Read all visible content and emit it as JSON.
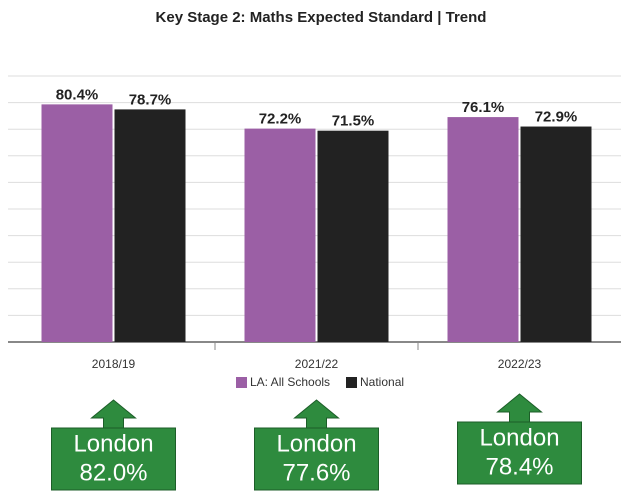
{
  "chart_data": {
    "type": "bar",
    "title": "Key Stage 2: Maths Expected Standard | Trend",
    "categories": [
      "2018/19",
      "2021/22",
      "2022/23"
    ],
    "series": [
      {
        "name": "LA: All Schools",
        "color": "#9b5fa5",
        "values": [
          80.4,
          72.2,
          76.1
        ],
        "value_labels": [
          "80.4%",
          "72.2%",
          "76.1%"
        ]
      },
      {
        "name": "National",
        "color": "#222222",
        "values": [
          78.7,
          71.5,
          72.9
        ],
        "value_labels": [
          "78.7%",
          "71.5%",
          "72.9%"
        ]
      }
    ],
    "ylim": [
      0,
      90
    ],
    "yticks": [
      0,
      9,
      18,
      27,
      36,
      45,
      54,
      63,
      72,
      81,
      90
    ],
    "grid": true,
    "legend": "bottom",
    "annotations": [
      [
        "London",
        "82.0%"
      ],
      [
        "London",
        "77.6%"
      ],
      [
        "London",
        "78.4%"
      ]
    ],
    "annotation_color": "#2e8b3e"
  }
}
